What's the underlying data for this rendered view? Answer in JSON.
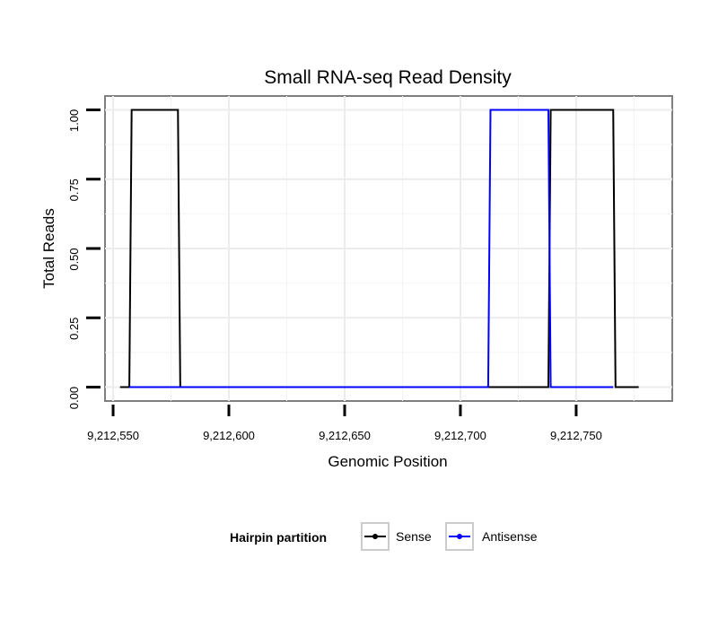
{
  "chart_data": {
    "type": "line",
    "title": "Small RNA-seq Read Density",
    "xlabel": "Genomic Position",
    "ylabel": "Total Reads",
    "xlim": [
      9212546.5,
      9212791.5
    ],
    "ylim": [
      -0.05,
      1.05
    ],
    "x_ticks": [
      9212550,
      9212600,
      9212650,
      9212700,
      9212750
    ],
    "x_tick_labels": [
      "9,212,550",
      "9,212,600",
      "9,212,650",
      "9,212,700",
      "9,212,750"
    ],
    "y_ticks": [
      0,
      0.25,
      0.5,
      0.75,
      1
    ],
    "y_tick_labels": [
      "0.00",
      "0.25",
      "0.50",
      "0.75",
      "1.00"
    ],
    "grid": true,
    "legend": {
      "title": "Hairpin partition",
      "position": "bottom"
    },
    "series": [
      {
        "name": "Sense",
        "color": "#000000",
        "x": [
          9212553,
          9212557,
          9212558,
          9212578,
          9212579,
          9212738,
          9212739,
          9212740,
          9212766,
          9212767,
          9212777
        ],
        "y": [
          0,
          0,
          1,
          1,
          0,
          0,
          1,
          1,
          1,
          0,
          0
        ]
      },
      {
        "name": "Antisense",
        "color": "#0000ff",
        "x": [
          9212557,
          9212578,
          9212579,
          9212712,
          9212713,
          9212738,
          9212739,
          9212740,
          9212766
        ],
        "y": [
          0,
          0,
          0,
          0,
          1,
          1,
          0,
          0,
          0
        ]
      }
    ]
  }
}
